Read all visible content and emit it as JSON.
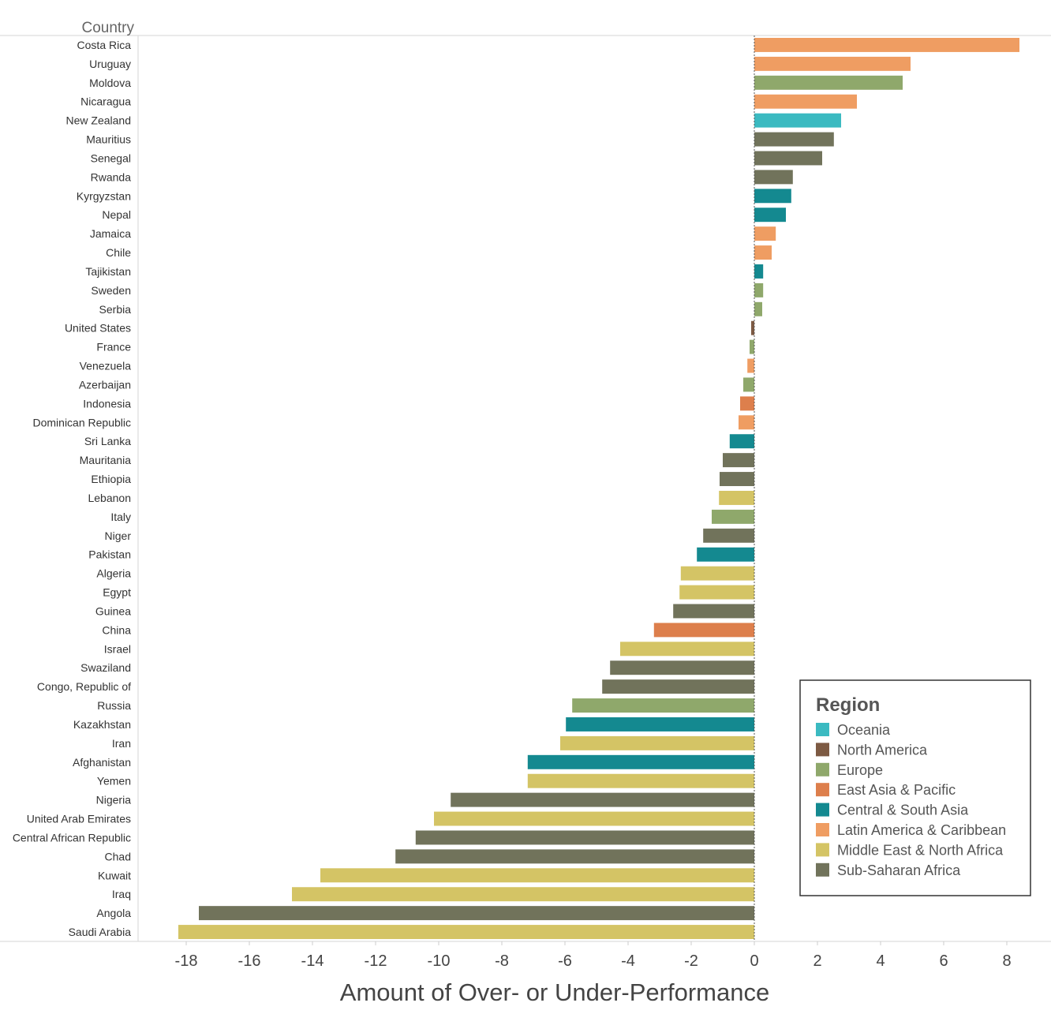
{
  "chart_data": {
    "type": "bar",
    "orientation": "horizontal",
    "row_header": "Country",
    "xlabel": "Amount of Over- or Under-Performance",
    "xlim": [
      -19.5,
      9.4
    ],
    "xticks": [
      -18,
      -16,
      -14,
      -12,
      -10,
      -8,
      -6,
      -4,
      -2,
      0,
      2,
      4,
      6,
      8
    ],
    "grid": false,
    "legend": {
      "title": "Region",
      "placement": "bottom-right",
      "entries": [
        {
          "name": "Oceania",
          "color": "#3bbac1"
        },
        {
          "name": "North America",
          "color": "#7d5a43"
        },
        {
          "name": "Europe",
          "color": "#8fa86b"
        },
        {
          "name": "East Asia & Pacific",
          "color": "#dd7f4c"
        },
        {
          "name": "Central & South Asia",
          "color": "#148990"
        },
        {
          "name": "Latin America & Caribbean",
          "color": "#ef9d62"
        },
        {
          "name": "Middle East & North Africa",
          "color": "#d4c465"
        },
        {
          "name": "Sub-Saharan Africa",
          "color": "#71735b"
        }
      ]
    },
    "bars": [
      {
        "country": "Costa Rica",
        "value": 8.4,
        "region": "Latin America & Caribbean"
      },
      {
        "country": "Uruguay",
        "value": 4.95,
        "region": "Latin America & Caribbean"
      },
      {
        "country": "Moldova",
        "value": 4.7,
        "region": "Europe"
      },
      {
        "country": "Nicaragua",
        "value": 3.25,
        "region": "Latin America & Caribbean"
      },
      {
        "country": "New Zealand",
        "value": 2.75,
        "region": "Oceania"
      },
      {
        "country": "Mauritius",
        "value": 2.52,
        "region": "Sub-Saharan Africa"
      },
      {
        "country": "Senegal",
        "value": 2.15,
        "region": "Sub-Saharan Africa"
      },
      {
        "country": "Rwanda",
        "value": 1.22,
        "region": "Sub-Saharan Africa"
      },
      {
        "country": "Kyrgyzstan",
        "value": 1.17,
        "region": "Central & South Asia"
      },
      {
        "country": "Nepal",
        "value": 1.0,
        "region": "Central & South Asia"
      },
      {
        "country": "Jamaica",
        "value": 0.68,
        "region": "Latin America & Caribbean"
      },
      {
        "country": "Chile",
        "value": 0.55,
        "region": "Latin America & Caribbean"
      },
      {
        "country": "Tajikistan",
        "value": 0.28,
        "region": "Central & South Asia"
      },
      {
        "country": "Sweden",
        "value": 0.28,
        "region": "Europe"
      },
      {
        "country": "Serbia",
        "value": 0.25,
        "region": "Europe"
      },
      {
        "country": "United States",
        "value": -0.1,
        "region": "North America"
      },
      {
        "country": "France",
        "value": -0.15,
        "region": "Europe"
      },
      {
        "country": "Venezuela",
        "value": -0.22,
        "region": "Latin America & Caribbean"
      },
      {
        "country": "Azerbaijan",
        "value": -0.35,
        "region": "Europe"
      },
      {
        "country": "Indonesia",
        "value": -0.45,
        "region": "East Asia & Pacific"
      },
      {
        "country": "Dominican Republic",
        "value": -0.5,
        "region": "Latin America & Caribbean"
      },
      {
        "country": "Sri Lanka",
        "value": -0.78,
        "region": "Central & South Asia"
      },
      {
        "country": "Mauritania",
        "value": -1.0,
        "region": "Sub-Saharan Africa"
      },
      {
        "country": "Ethiopia",
        "value": -1.1,
        "region": "Sub-Saharan Africa"
      },
      {
        "country": "Lebanon",
        "value": -1.12,
        "region": "Middle East & North Africa"
      },
      {
        "country": "Italy",
        "value": -1.35,
        "region": "Europe"
      },
      {
        "country": "Niger",
        "value": -1.62,
        "region": "Sub-Saharan Africa"
      },
      {
        "country": "Pakistan",
        "value": -1.82,
        "region": "Central & South Asia"
      },
      {
        "country": "Algeria",
        "value": -2.33,
        "region": "Middle East & North Africa"
      },
      {
        "country": "Egypt",
        "value": -2.37,
        "region": "Middle East & North Africa"
      },
      {
        "country": "Guinea",
        "value": -2.57,
        "region": "Sub-Saharan Africa"
      },
      {
        "country": "China",
        "value": -3.18,
        "region": "East Asia & Pacific"
      },
      {
        "country": "Israel",
        "value": -4.25,
        "region": "Middle East & North Africa"
      },
      {
        "country": "Swaziland",
        "value": -4.57,
        "region": "Sub-Saharan Africa"
      },
      {
        "country": "Congo, Republic of",
        "value": -4.82,
        "region": "Sub-Saharan Africa"
      },
      {
        "country": "Russia",
        "value": -5.77,
        "region": "Europe"
      },
      {
        "country": "Kazakhstan",
        "value": -5.97,
        "region": "Central & South Asia"
      },
      {
        "country": "Iran",
        "value": -6.15,
        "region": "Middle East & North Africa"
      },
      {
        "country": "Afghanistan",
        "value": -7.18,
        "region": "Central & South Asia"
      },
      {
        "country": "Yemen",
        "value": -7.18,
        "region": "Middle East & North Africa"
      },
      {
        "country": "Nigeria",
        "value": -9.62,
        "region": "Sub-Saharan Africa"
      },
      {
        "country": "United Arab Emirates",
        "value": -10.15,
        "region": "Middle East & North Africa"
      },
      {
        "country": "Central African Republic",
        "value": -10.73,
        "region": "Sub-Saharan Africa"
      },
      {
        "country": "Chad",
        "value": -11.37,
        "region": "Sub-Saharan Africa"
      },
      {
        "country": "Kuwait",
        "value": -13.75,
        "region": "Middle East & North Africa"
      },
      {
        "country": "Iraq",
        "value": -14.65,
        "region": "Middle East & North Africa"
      },
      {
        "country": "Angola",
        "value": -17.6,
        "region": "Sub-Saharan Africa"
      },
      {
        "country": "Saudi Arabia",
        "value": -18.25,
        "region": "Middle East & North Africa"
      }
    ]
  }
}
